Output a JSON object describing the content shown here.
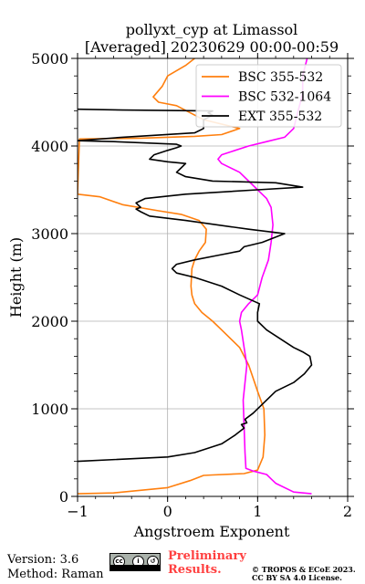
{
  "chart_data": {
    "type": "line",
    "title_lines": [
      "pollyxt_cyp at Limassol",
      "[Averaged] 20230629 00:00-00:59"
    ],
    "xlabel": "Angstroem Exponent",
    "ylabel": "Height (m)",
    "xlim": [
      -1,
      2
    ],
    "ylim": [
      0,
      5000
    ],
    "xticks": [
      -1,
      0,
      1,
      2
    ],
    "xtick_labels": [
      "−1",
      "0",
      "1",
      "2"
    ],
    "yticks": [
      0,
      1000,
      2000,
      3000,
      4000,
      5000
    ],
    "ytick_labels": [
      "0",
      "1000",
      "2000",
      "3000",
      "4000",
      "5000"
    ],
    "grid": true,
    "legend_position": "top-right",
    "series": [
      {
        "name": "BSC 355-532",
        "color": "#ff7f0e",
        "points": [
          [
            -1.0,
            30
          ],
          [
            -0.6,
            40
          ],
          [
            0.0,
            100
          ],
          [
            0.25,
            180
          ],
          [
            0.4,
            240
          ],
          [
            0.5,
            245
          ],
          [
            0.85,
            260
          ],
          [
            1.0,
            300
          ],
          [
            1.06,
            450
          ],
          [
            1.08,
            700
          ],
          [
            1.07,
            1000
          ],
          [
            1.0,
            1200
          ],
          [
            0.9,
            1500
          ],
          [
            0.8,
            1700
          ],
          [
            0.6,
            1900
          ],
          [
            0.5,
            2000
          ],
          [
            0.38,
            2100
          ],
          [
            0.3,
            2200
          ],
          [
            0.27,
            2300
          ],
          [
            0.26,
            2400
          ],
          [
            0.27,
            2600
          ],
          [
            0.3,
            2700
          ],
          [
            0.35,
            2800
          ],
          [
            0.42,
            2900
          ],
          [
            0.43,
            3050
          ],
          [
            0.35,
            3150
          ],
          [
            0.15,
            3220
          ],
          [
            -0.1,
            3260
          ],
          [
            -0.5,
            3330
          ],
          [
            -0.75,
            3420
          ],
          [
            -1.0,
            3450
          ],
          [
            -0.98,
            4080
          ],
          [
            -0.3,
            4090
          ],
          [
            0.3,
            4110
          ],
          [
            0.6,
            4130
          ],
          [
            0.8,
            4200
          ],
          [
            0.4,
            4300
          ],
          [
            0.1,
            4460
          ],
          [
            -0.1,
            4500
          ],
          [
            -0.16,
            4560
          ],
          [
            -0.06,
            4680
          ],
          [
            0.0,
            4800
          ],
          [
            0.2,
            4920
          ],
          [
            0.3,
            5000
          ]
        ]
      },
      {
        "name": "BSC 532-1064",
        "color": "#ff00ff",
        "points": [
          [
            1.6,
            30
          ],
          [
            1.4,
            50
          ],
          [
            1.2,
            150
          ],
          [
            1.15,
            200
          ],
          [
            1.1,
            250
          ],
          [
            0.95,
            290
          ],
          [
            0.87,
            320
          ],
          [
            0.86,
            500
          ],
          [
            0.85,
            800
          ],
          [
            0.84,
            1100
          ],
          [
            0.86,
            1300
          ],
          [
            0.88,
            1500
          ],
          [
            0.85,
            1700
          ],
          [
            0.82,
            1900
          ],
          [
            0.8,
            2000
          ],
          [
            0.82,
            2100
          ],
          [
            0.9,
            2200
          ],
          [
            1.0,
            2300
          ],
          [
            1.05,
            2500
          ],
          [
            1.12,
            2700
          ],
          [
            1.15,
            2900
          ],
          [
            1.17,
            3100
          ],
          [
            1.15,
            3300
          ],
          [
            1.1,
            3400
          ],
          [
            1.0,
            3500
          ],
          [
            0.8,
            3700
          ],
          [
            0.6,
            3800
          ],
          [
            0.56,
            3850
          ],
          [
            0.6,
            3900
          ],
          [
            0.9,
            4000
          ],
          [
            1.1,
            4050
          ],
          [
            1.3,
            4100
          ],
          [
            1.4,
            4200
          ],
          [
            1.45,
            4400
          ],
          [
            1.5,
            4600
          ],
          [
            1.5,
            4800
          ],
          [
            1.55,
            5000
          ]
        ]
      },
      {
        "name": "EXT 355-532",
        "color": "#000000",
        "points": [
          [
            -1.0,
            400
          ],
          [
            0.0,
            450
          ],
          [
            0.3,
            500
          ],
          [
            0.6,
            600
          ],
          [
            0.75,
            700
          ],
          [
            0.85,
            780
          ],
          [
            0.82,
            820
          ],
          [
            0.88,
            840
          ],
          [
            0.86,
            880
          ],
          [
            0.95,
            950
          ],
          [
            1.05,
            1050
          ],
          [
            1.2,
            1200
          ],
          [
            1.4,
            1300
          ],
          [
            1.52,
            1400
          ],
          [
            1.6,
            1500
          ],
          [
            1.58,
            1600
          ],
          [
            1.5,
            1650
          ],
          [
            1.4,
            1700
          ],
          [
            1.25,
            1800
          ],
          [
            1.1,
            1900
          ],
          [
            1.0,
            2000
          ],
          [
            1.0,
            2100
          ],
          [
            1.02,
            2200
          ],
          [
            0.8,
            2300
          ],
          [
            0.6,
            2400
          ],
          [
            0.3,
            2500
          ],
          [
            0.1,
            2550
          ],
          [
            0.05,
            2600
          ],
          [
            0.1,
            2650
          ],
          [
            0.3,
            2700
          ],
          [
            0.55,
            2750
          ],
          [
            0.8,
            2800
          ],
          [
            0.85,
            2850
          ],
          [
            1.05,
            2900
          ],
          [
            1.3,
            3000
          ],
          [
            0.9,
            3050
          ],
          [
            0.2,
            3150
          ],
          [
            -0.2,
            3200
          ],
          [
            -0.3,
            3250
          ],
          [
            -0.35,
            3280
          ],
          [
            -0.3,
            3300
          ],
          [
            -0.35,
            3350
          ],
          [
            -0.25,
            3400
          ],
          [
            0.2,
            3450
          ],
          [
            1.0,
            3500
          ],
          [
            1.5,
            3530
          ],
          [
            1.2,
            3580
          ],
          [
            0.5,
            3600
          ],
          [
            0.2,
            3650
          ],
          [
            0.1,
            3700
          ],
          [
            0.15,
            3750
          ],
          [
            0.2,
            3800
          ],
          [
            0.0,
            3820
          ],
          [
            -0.2,
            3850
          ],
          [
            -0.15,
            3900
          ],
          [
            0.0,
            3950
          ],
          [
            0.1,
            3980
          ],
          [
            0.15,
            4000
          ],
          [
            0.1,
            4020
          ],
          [
            -0.6,
            4050
          ],
          [
            -1.0,
            4060
          ],
          [
            -0.5,
            4100
          ],
          [
            0.3,
            4150
          ],
          [
            0.4,
            4200
          ],
          [
            0.4,
            4300
          ],
          [
            0.5,
            4350
          ],
          [
            0.45,
            4380
          ],
          [
            0.5,
            4400
          ],
          [
            -0.5,
            4410
          ],
          [
            -1.0,
            4420
          ]
        ]
      }
    ]
  },
  "footer": {
    "version_text": "Version: 3.6",
    "method_text": "Method: Raman",
    "preliminary_line1": "Preliminary",
    "preliminary_line2": "Results.",
    "copyright_line1": "© TROPOS & ECoE 2023.",
    "copyright_line2": "CC BY SA 4.0 License.",
    "cc_icon": "cc-by-sa-icon"
  }
}
